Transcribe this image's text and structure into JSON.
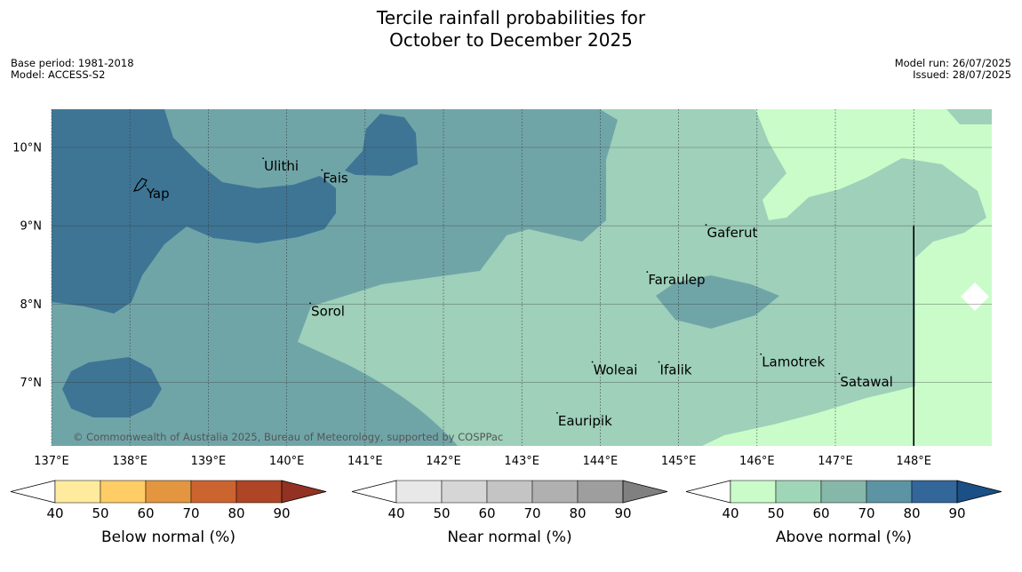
{
  "title_line1": "Tercile rainfall probabilities for",
  "title_line2": "October to December 2025",
  "meta_left": [
    "Base period: 1981-2018",
    "Model: ACCESS-S2"
  ],
  "meta_right": [
    "Model run: 26/07/2025",
    "Issued: 28/07/2025"
  ],
  "copyright": "© Commonwealth of Australia 2025, Bureau of Meteorology, supported by COSPPac",
  "map": {
    "lon_range": [
      137.0,
      149.0
    ],
    "lat_range": [
      6.2,
      10.5
    ],
    "lon_ticks": [
      {
        "value": 137,
        "label": "137°E"
      },
      {
        "value": 138,
        "label": "138°E"
      },
      {
        "value": 139,
        "label": "139°E"
      },
      {
        "value": 140,
        "label": "140°E"
      },
      {
        "value": 141,
        "label": "141°E"
      },
      {
        "value": 142,
        "label": "142°E"
      },
      {
        "value": 143,
        "label": "143°E"
      },
      {
        "value": 144,
        "label": "144°E"
      },
      {
        "value": 145,
        "label": "145°E"
      },
      {
        "value": 146,
        "label": "146°E"
      },
      {
        "value": 147,
        "label": "147°E"
      },
      {
        "value": 148,
        "label": "148°E"
      }
    ],
    "lat_ticks": [
      {
        "value": 10,
        "label": "10°N"
      },
      {
        "value": 9,
        "label": "9°N"
      },
      {
        "value": 8,
        "label": "8°N"
      },
      {
        "value": 7,
        "label": "7°N"
      }
    ],
    "places": [
      {
        "name": "Yap",
        "lon": 138.2,
        "lat": 9.5
      },
      {
        "name": "Ulithi",
        "lon": 139.7,
        "lat": 9.85
      },
      {
        "name": "Fais",
        "lon": 140.45,
        "lat": 9.7
      },
      {
        "name": "Gaferut",
        "lon": 145.35,
        "lat": 9.0
      },
      {
        "name": "Faraulep",
        "lon": 144.6,
        "lat": 8.4
      },
      {
        "name": "Sorol",
        "lon": 140.3,
        "lat": 8.0
      },
      {
        "name": "Woleai",
        "lon": 143.9,
        "lat": 7.25
      },
      {
        "name": "Ifalik",
        "lon": 144.75,
        "lat": 7.25
      },
      {
        "name": "Lamotrek",
        "lon": 146.05,
        "lat": 7.35
      },
      {
        "name": "Satawal",
        "lon": 147.05,
        "lat": 7.1
      },
      {
        "name": "Eauripik",
        "lon": 143.45,
        "lat": 6.6
      }
    ],
    "boundary_lon": 148.0
  },
  "colorbars": [
    {
      "title": "Below normal (%)",
      "ticks": [
        "40",
        "50",
        "60",
        "70",
        "80",
        "90"
      ],
      "colors": [
        "#ffffff",
        "#ffeb9e",
        "#ffcc66",
        "#e3963f",
        "#cc6430",
        "#ae4526",
        "#933223"
      ]
    },
    {
      "title": "Near normal (%)",
      "ticks": [
        "40",
        "50",
        "60",
        "70",
        "80",
        "90"
      ],
      "colors": [
        "#ffffff",
        "#e8e8e8",
        "#d6d6d6",
        "#c4c4c4",
        "#b0b0b0",
        "#9e9e9e",
        "#808080"
      ]
    },
    {
      "title": "Above normal (%)",
      "ticks": [
        "40",
        "50",
        "60",
        "70",
        "80",
        "90"
      ],
      "colors": [
        "#ffffff",
        "#c9fcc9",
        "#a0d6b8",
        "#86b8aa",
        "#5c94a3",
        "#336699",
        "#1a5086"
      ]
    }
  ]
}
